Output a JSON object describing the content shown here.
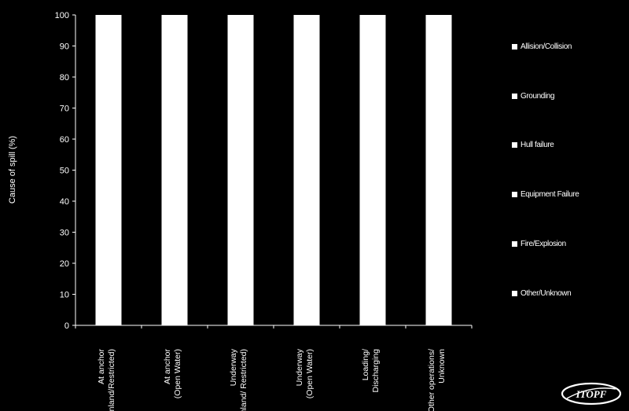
{
  "chart_data": {
    "type": "bar",
    "stacked": true,
    "title": "",
    "xlabel": "",
    "ylabel": "Cause of spill (%)",
    "ylim": [
      0,
      100
    ],
    "yticks": [
      0,
      10,
      20,
      30,
      40,
      50,
      60,
      70,
      80,
      90,
      100
    ],
    "grid": false,
    "legend_position": "right",
    "categories": [
      [
        "At anchor",
        "(Inland/Restricted)"
      ],
      [
        "At anchor",
        "(Open Water)"
      ],
      [
        "Underway",
        "(Inland/ Restricted)"
      ],
      [
        "Underway",
        "(Open Water)"
      ],
      [
        "Loading/",
        "Discharging"
      ],
      [
        "Other operations/",
        "Unknown"
      ]
    ],
    "series": [
      {
        "name": "Allision/Collision",
        "color": "#ffffff",
        "values": [
          100,
          100,
          100,
          100,
          100,
          100
        ]
      },
      {
        "name": "Grounding",
        "color": "#ffffff",
        "values": [
          0,
          0,
          0,
          0,
          0,
          0
        ]
      },
      {
        "name": "Hull failure",
        "color": "#ffffff",
        "values": [
          0,
          0,
          0,
          0,
          0,
          0
        ]
      },
      {
        "name": "Equipment Failure",
        "color": "#ffffff",
        "values": [
          0,
          0,
          0,
          0,
          0,
          0
        ]
      },
      {
        "name": "Fire/Explosion",
        "color": "#ffffff",
        "values": [
          0,
          0,
          0,
          0,
          0,
          0
        ]
      },
      {
        "name": "Other/Unknown",
        "color": "#ffffff",
        "values": [
          0,
          0,
          0,
          0,
          0,
          0
        ]
      }
    ]
  },
  "logo": {
    "text": "ITOPF"
  }
}
